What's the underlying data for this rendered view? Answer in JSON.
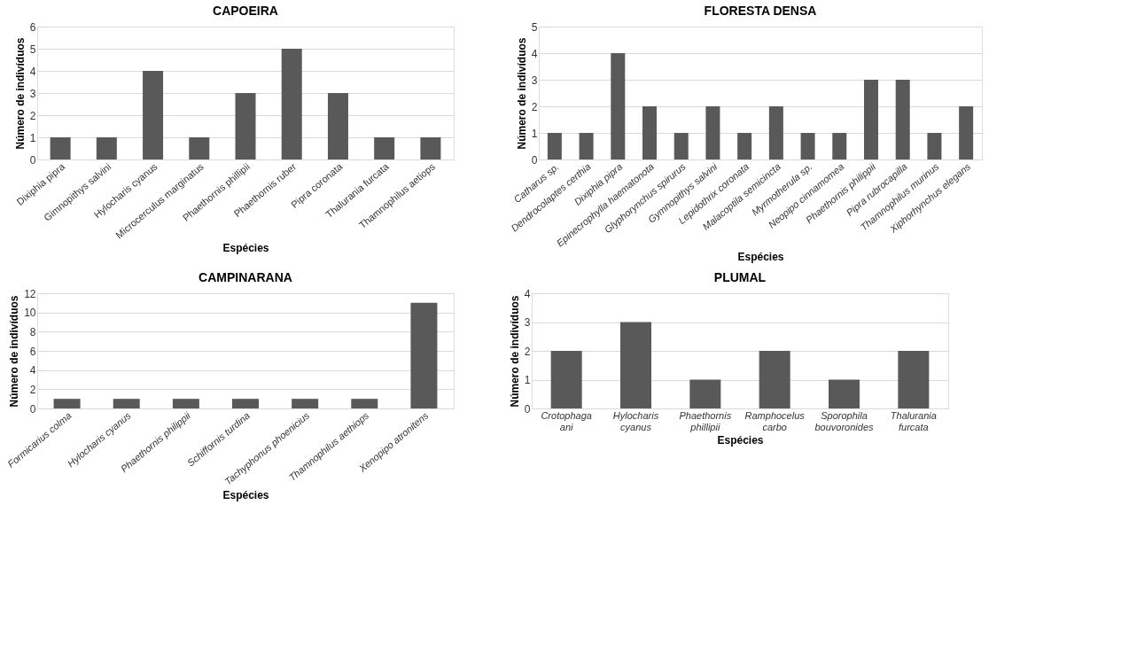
{
  "chart_data": [
    {
      "type": "bar",
      "title": "CAPOEIRA",
      "xlabel": "Espécies",
      "ylabel": "Número de indivíduos",
      "categories": [
        "Dixiphia pipra",
        "Gimnopithys salvini",
        "Hylocharis  cyanus",
        "Microcerculus marginatus",
        "Phaethornis phillipii",
        "Phaethornis ruber",
        "Pipra coronata",
        "Thalurania furcata",
        "Thamnophilus aetiops"
      ],
      "values": [
        1,
        1,
        4,
        1,
        3,
        5,
        3,
        1,
        1
      ],
      "color": "#595959",
      "ylim": [
        0,
        6
      ],
      "yticks": [
        0,
        1,
        2,
        3,
        4,
        5,
        6
      ],
      "grid": "y"
    },
    {
      "type": "bar",
      "title": "FLORESTA DENSA",
      "xlabel": "Espécies",
      "ylabel": "Número de indivíduos",
      "categories": [
        "Catharus sp.",
        "Dendrocolaptes certhia",
        "Dixiphia pipra",
        "Epinecrophylla haematonota",
        "Glyphorynchus spirurus",
        "Gymnopithys salvini",
        "Lepidothrix coronata",
        "Malacoptila semicincta",
        "Myrmotherula sp.",
        "Neopipo cinnamomea",
        "Phaethornis philippii",
        "Pipra rubrocapilla",
        "Thamnophilus murinus",
        "Xiphorhynchus elegans"
      ],
      "values": [
        1,
        1,
        4,
        2,
        1,
        2,
        1,
        2,
        1,
        1,
        3,
        3,
        1,
        2
      ],
      "color": "#595959",
      "ylim": [
        0,
        5
      ],
      "yticks": [
        0,
        1,
        2,
        3,
        4,
        5
      ],
      "grid": "y"
    },
    {
      "type": "bar",
      "title": "CAMPINARANA",
      "xlabel": "Espécies",
      "ylabel": "Número de indivíduos",
      "categories": [
        "Formicarius colma",
        "Hylocharis cyanus",
        "Phaethornis philippii",
        "Schiffornis turdina",
        "Tachyphonus phoenicius",
        "Thamnophilus aethiops",
        "Xenopipo atronitens"
      ],
      "values": [
        1,
        1,
        1,
        1,
        1,
        1,
        11
      ],
      "color": "#595959",
      "ylim": [
        0,
        12
      ],
      "yticks": [
        0,
        2,
        4,
        6,
        8,
        10,
        12
      ],
      "grid": "y"
    },
    {
      "type": "bar",
      "title": "PLUMAL",
      "xlabel": "Espécies",
      "ylabel": "Número de indivíduos",
      "categories": [
        "Crotophaga ani",
        "Hylocharis cyanus",
        "Phaethornis phillipii",
        "Ramphocelus carbo",
        "Sporophila bouvoronides",
        "Thalurania furcata"
      ],
      "values": [
        2,
        3,
        1,
        2,
        1,
        2
      ],
      "color": "#595959",
      "ylim": [
        0,
        4
      ],
      "yticks": [
        0,
        1,
        2,
        3,
        4
      ],
      "grid": "y"
    }
  ]
}
